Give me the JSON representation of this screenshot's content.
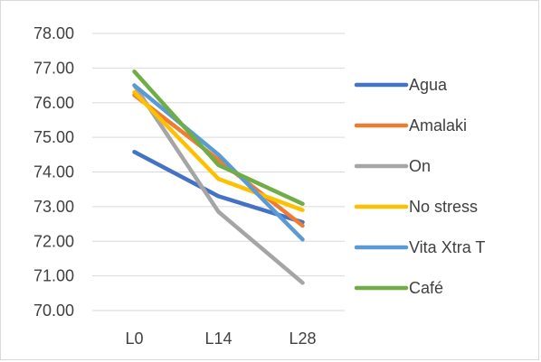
{
  "chart_data": {
    "type": "line",
    "categories": [
      "L0",
      "L14",
      "L28"
    ],
    "y_tick_labels": [
      "70.00",
      "71.00",
      "72.00",
      "73.00",
      "74.00",
      "75.00",
      "76.00",
      "77.00",
      "78.00"
    ],
    "ylim": [
      70,
      78
    ],
    "grid": true,
    "legend_position": "right",
    "series": [
      {
        "name": "Agua",
        "values": [
          74.58,
          73.3,
          72.55
        ],
        "color": "#4472c4"
      },
      {
        "name": "Amalaki",
        "values": [
          76.22,
          74.35,
          72.45
        ],
        "color": "#ed7d31"
      },
      {
        "name": "On",
        "values": [
          76.5,
          72.85,
          70.8
        ],
        "color": "#a5a5a5"
      },
      {
        "name": "No stress",
        "values": [
          76.3,
          73.8,
          72.9
        ],
        "color": "#ffc000"
      },
      {
        "name": "Vita Xtra T",
        "values": [
          76.5,
          74.5,
          72.05
        ],
        "color": "#5b9bd5"
      },
      {
        "name": "Café",
        "values": [
          76.9,
          74.2,
          73.08
        ],
        "color": "#70ad47"
      }
    ]
  }
}
